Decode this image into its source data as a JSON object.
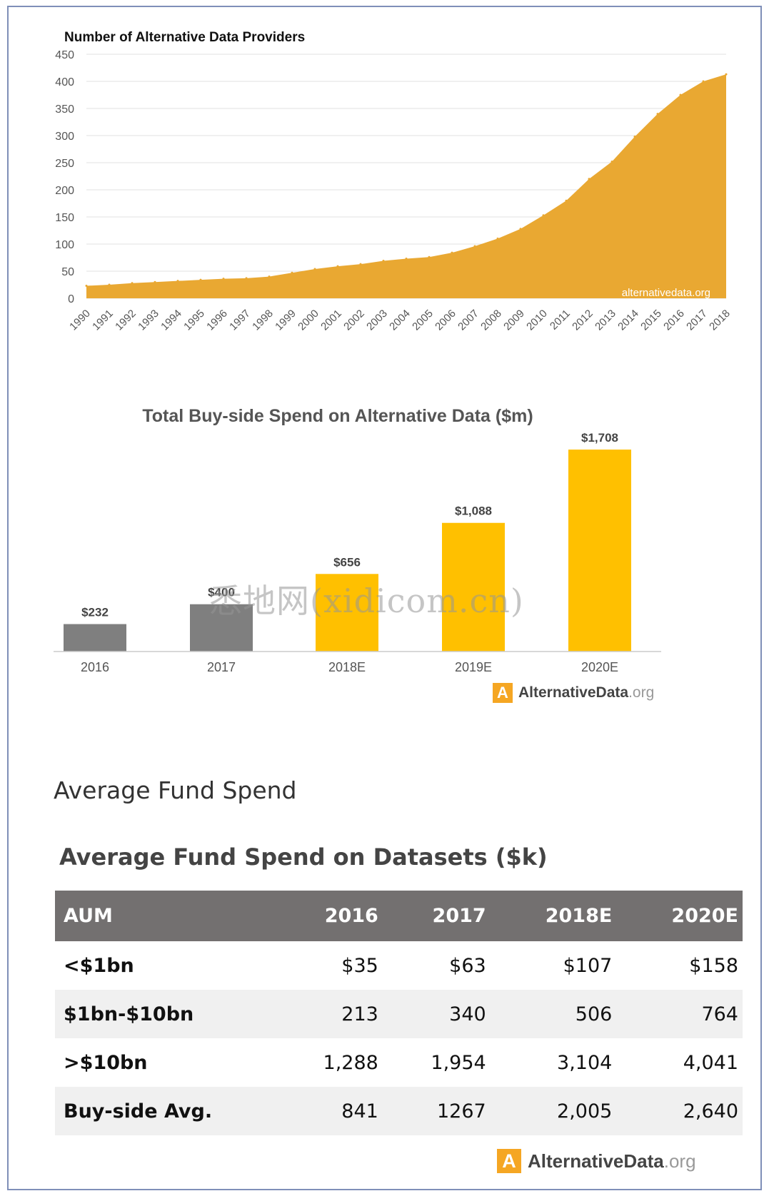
{
  "chart_data": [
    {
      "type": "area",
      "title": "Number of Alternative Data Providers",
      "xlabel": "",
      "ylabel": "",
      "ylim": [
        0,
        450
      ],
      "y_ticks": [
        0,
        50,
        100,
        150,
        200,
        250,
        300,
        350,
        400,
        450
      ],
      "x": [
        "1990",
        "1991",
        "1992",
        "1993",
        "1994",
        "1995",
        "1996",
        "1997",
        "1998",
        "1999",
        "2000",
        "2001",
        "2002",
        "2003",
        "2004",
        "2005",
        "2006",
        "2007",
        "2008",
        "2009",
        "2010",
        "2011",
        "2012",
        "2013",
        "2014",
        "2015",
        "2016",
        "2017",
        "2018"
      ],
      "series": [
        {
          "values": [
            23,
            25,
            28,
            30,
            32,
            34,
            36,
            37,
            40,
            47,
            54,
            59,
            63,
            69,
            73,
            76,
            84,
            96,
            110,
            128,
            153,
            180,
            220,
            252,
            298,
            340,
            375,
            400,
            413
          ]
        }
      ],
      "grid": true,
      "color": "#e9a832",
      "source_label": "alternativedata.org"
    },
    {
      "type": "bar",
      "title": "Total Buy-side Spend on Alternative Data ($m)",
      "xlabel": "",
      "ylabel": "",
      "categories": [
        "2016",
        "2017",
        "2018E",
        "2019E",
        "2020E"
      ],
      "values": [
        232,
        400,
        656,
        1088,
        1708
      ],
      "data_labels": [
        "$232",
        "$400",
        "$656",
        "$1,088",
        "$1,708"
      ],
      "ylim": [
        0,
        1708
      ],
      "bar_colors": [
        "#7f7f7f",
        "#7f7f7f",
        "#ffc000",
        "#ffc000",
        "#ffc000"
      ],
      "grid": false
    },
    {
      "type": "table",
      "title": "Average Fund Spend on Datasets ($k)",
      "columns": [
        "AUM",
        "2016",
        "2017",
        "2018E",
        "2020E"
      ],
      "rows": [
        [
          "<$1bn",
          "$35",
          "$63",
          "$107",
          "$158"
        ],
        [
          "$1bn-$10bn",
          "213",
          "340",
          "506",
          "764"
        ],
        [
          ">$10bn",
          "1,288",
          "1,954",
          "3,104",
          "4,041"
        ],
        [
          "Buy-side Avg.",
          "841",
          "1267",
          "2,005",
          "2,640"
        ]
      ]
    }
  ],
  "section_heading": "Average Fund Spend",
  "brand": {
    "letter": "A",
    "name": "AlternativeData",
    "suffix": ".org"
  },
  "watermark": "悉地网(xidicom.cn)",
  "colors": {
    "area": "#e9a832",
    "bar_gray": "#7f7f7f",
    "bar_yellow": "#ffc000",
    "table_header": "#737070",
    "row_shade": "#f0f0f0",
    "brand_orange": "#f5a623"
  }
}
